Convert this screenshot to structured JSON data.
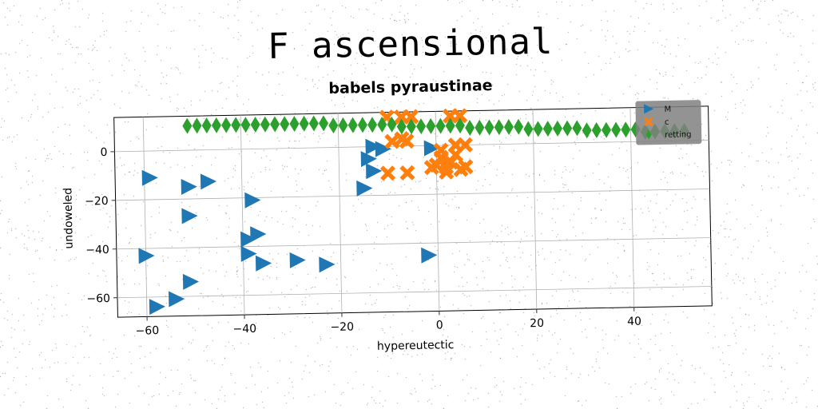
{
  "suptitle": "F ascensional",
  "chart_data": {
    "type": "scatter",
    "title": "babels pyraustinae",
    "xlabel": "hypereutectic",
    "ylabel": "undoweled",
    "xlim": [
      -66,
      56
    ],
    "ylim": [
      -68,
      14
    ],
    "xticks": [
      -60,
      -40,
      -20,
      0,
      20,
      40
    ],
    "yticks": [
      -60,
      -40,
      -20,
      0
    ],
    "grid": true,
    "legend_position": "top-right",
    "series": [
      {
        "name": "M",
        "marker": "triangle-right",
        "color": "#1f77b4",
        "points": [
          [
            -59,
            -11
          ],
          [
            -51,
            -15
          ],
          [
            -47,
            -13
          ],
          [
            -51,
            -27
          ],
          [
            -38,
            -21
          ],
          [
            -60,
            -43
          ],
          [
            -39,
            -37
          ],
          [
            -37,
            -35
          ],
          [
            -39,
            -43
          ],
          [
            -36,
            -47
          ],
          [
            -29,
            -46
          ],
          [
            -23,
            -48
          ],
          [
            -51,
            -54
          ],
          [
            -54,
            -61
          ],
          [
            -58,
            -64
          ],
          [
            -15,
            -17
          ],
          [
            -14,
            -5
          ],
          [
            -13,
            0
          ],
          [
            -13,
            -10
          ],
          [
            -11,
            -1
          ],
          [
            -1,
            -1
          ],
          [
            -2,
            -45
          ]
        ]
      },
      {
        "name": "c",
        "marker": "x-filled",
        "color": "#ff7f0e",
        "points": [
          [
            -10,
            12
          ],
          [
            -7,
            12
          ],
          [
            -5,
            12
          ],
          [
            3,
            12
          ],
          [
            5,
            12
          ],
          [
            -9,
            2
          ],
          [
            -7,
            3
          ],
          [
            -6,
            2
          ],
          [
            -10,
            -11
          ],
          [
            -6,
            -11
          ],
          [
            1,
            -5
          ],
          [
            0,
            -8
          ],
          [
            -1,
            -9
          ],
          [
            2,
            -9
          ],
          [
            3,
            -7
          ],
          [
            4,
            -4
          ],
          [
            2,
            -11
          ],
          [
            5,
            -10
          ],
          [
            6,
            -9
          ],
          [
            4,
            0
          ],
          [
            6,
            0
          ],
          [
            1,
            -2
          ]
        ]
      },
      {
        "name": "retting",
        "marker": "diamond",
        "color": "#2ca02c",
        "points": [
          [
            -51,
            10
          ],
          [
            -49,
            10
          ],
          [
            -47,
            10
          ],
          [
            -45,
            10
          ],
          [
            -43,
            10
          ],
          [
            -41,
            10
          ],
          [
            -39,
            10
          ],
          [
            -37,
            10
          ],
          [
            -35,
            10
          ],
          [
            -33,
            10
          ],
          [
            -31,
            10
          ],
          [
            -29,
            10
          ],
          [
            -27,
            10
          ],
          [
            -25,
            10
          ],
          [
            -23,
            10
          ],
          [
            -21,
            9
          ],
          [
            -19,
            9
          ],
          [
            -17,
            9
          ],
          [
            -15,
            9
          ],
          [
            -13,
            9
          ],
          [
            -11,
            9
          ],
          [
            -9,
            9
          ],
          [
            -7,
            8
          ],
          [
            -5,
            8
          ],
          [
            -3,
            8
          ],
          [
            -1,
            8
          ],
          [
            1,
            8
          ],
          [
            3,
            8
          ],
          [
            5,
            8
          ],
          [
            7,
            7
          ],
          [
            9,
            7
          ],
          [
            11,
            7
          ],
          [
            13,
            7
          ],
          [
            15,
            7
          ],
          [
            17,
            7
          ],
          [
            19,
            6
          ],
          [
            21,
            6
          ],
          [
            23,
            6
          ],
          [
            25,
            6
          ],
          [
            27,
            6
          ],
          [
            29,
            6
          ],
          [
            31,
            5
          ],
          [
            33,
            5
          ],
          [
            35,
            5
          ],
          [
            37,
            5
          ],
          [
            39,
            5
          ],
          [
            41,
            5
          ],
          [
            43,
            4
          ],
          [
            45,
            4
          ],
          [
            47,
            4
          ],
          [
            49,
            4
          ],
          [
            51,
            4
          ]
        ]
      }
    ]
  }
}
